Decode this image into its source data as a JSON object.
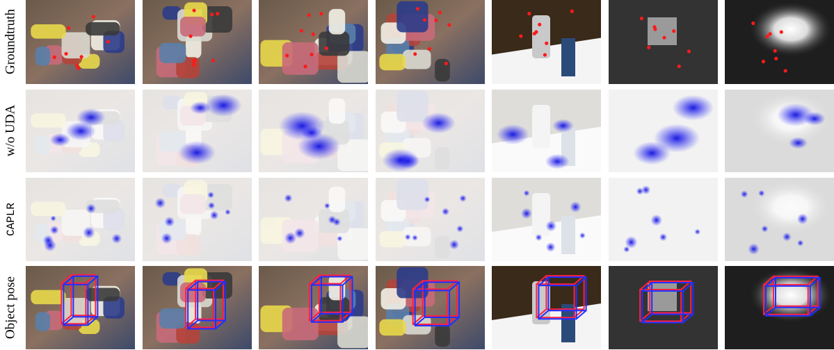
{
  "rows": [
    {
      "label": "Groundtruth"
    },
    {
      "label": "w/o UDA"
    },
    {
      "label": "CAPLR"
    },
    {
      "label": "Object pose"
    }
  ]
}
